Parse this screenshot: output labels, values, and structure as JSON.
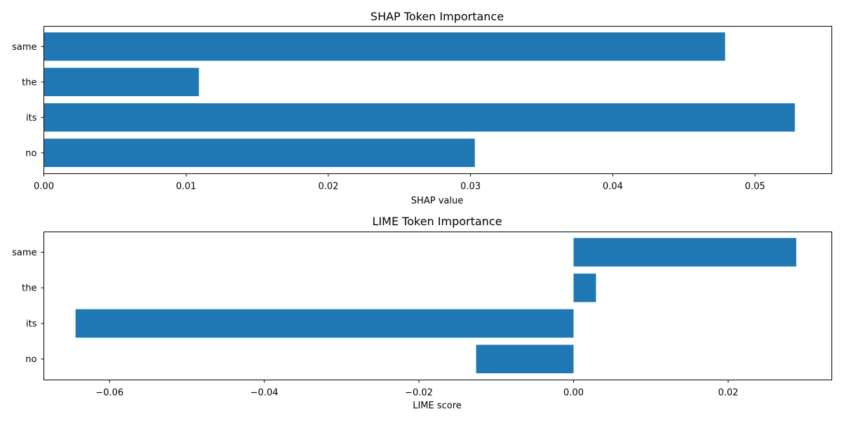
{
  "chart_data": [
    {
      "type": "bar",
      "orientation": "horizontal",
      "title": "SHAP Token Importance",
      "xlabel": "SHAP value",
      "ylabel": "",
      "categories": [
        "same",
        "the",
        "its",
        "no"
      ],
      "values": [
        0.0479,
        0.0109,
        0.0528,
        0.0303
      ],
      "xlim": [
        0,
        0.0554
      ],
      "xticks": [
        0,
        0.01,
        0.02,
        0.03,
        0.04,
        0.05
      ],
      "xtick_labels": [
        "0.00",
        "0.01",
        "0.02",
        "0.03",
        "0.04",
        "0.05"
      ],
      "color": "#1f77b4",
      "grid": false
    },
    {
      "type": "bar",
      "orientation": "horizontal",
      "title": "LIME Token Importance",
      "xlabel": "LIME score",
      "ylabel": "",
      "categories": [
        "same",
        "the",
        "its",
        "no"
      ],
      "values": [
        0.0288,
        0.0029,
        -0.0644,
        -0.0126
      ],
      "xlim": [
        -0.0685,
        0.0334
      ],
      "xticks": [
        -0.06,
        -0.04,
        -0.02,
        0.0,
        0.02
      ],
      "xtick_labels": [
        "−0.06",
        "−0.04",
        "−0.02",
        "0.00",
        "0.02"
      ],
      "color": "#1f77b4",
      "grid": false
    }
  ]
}
